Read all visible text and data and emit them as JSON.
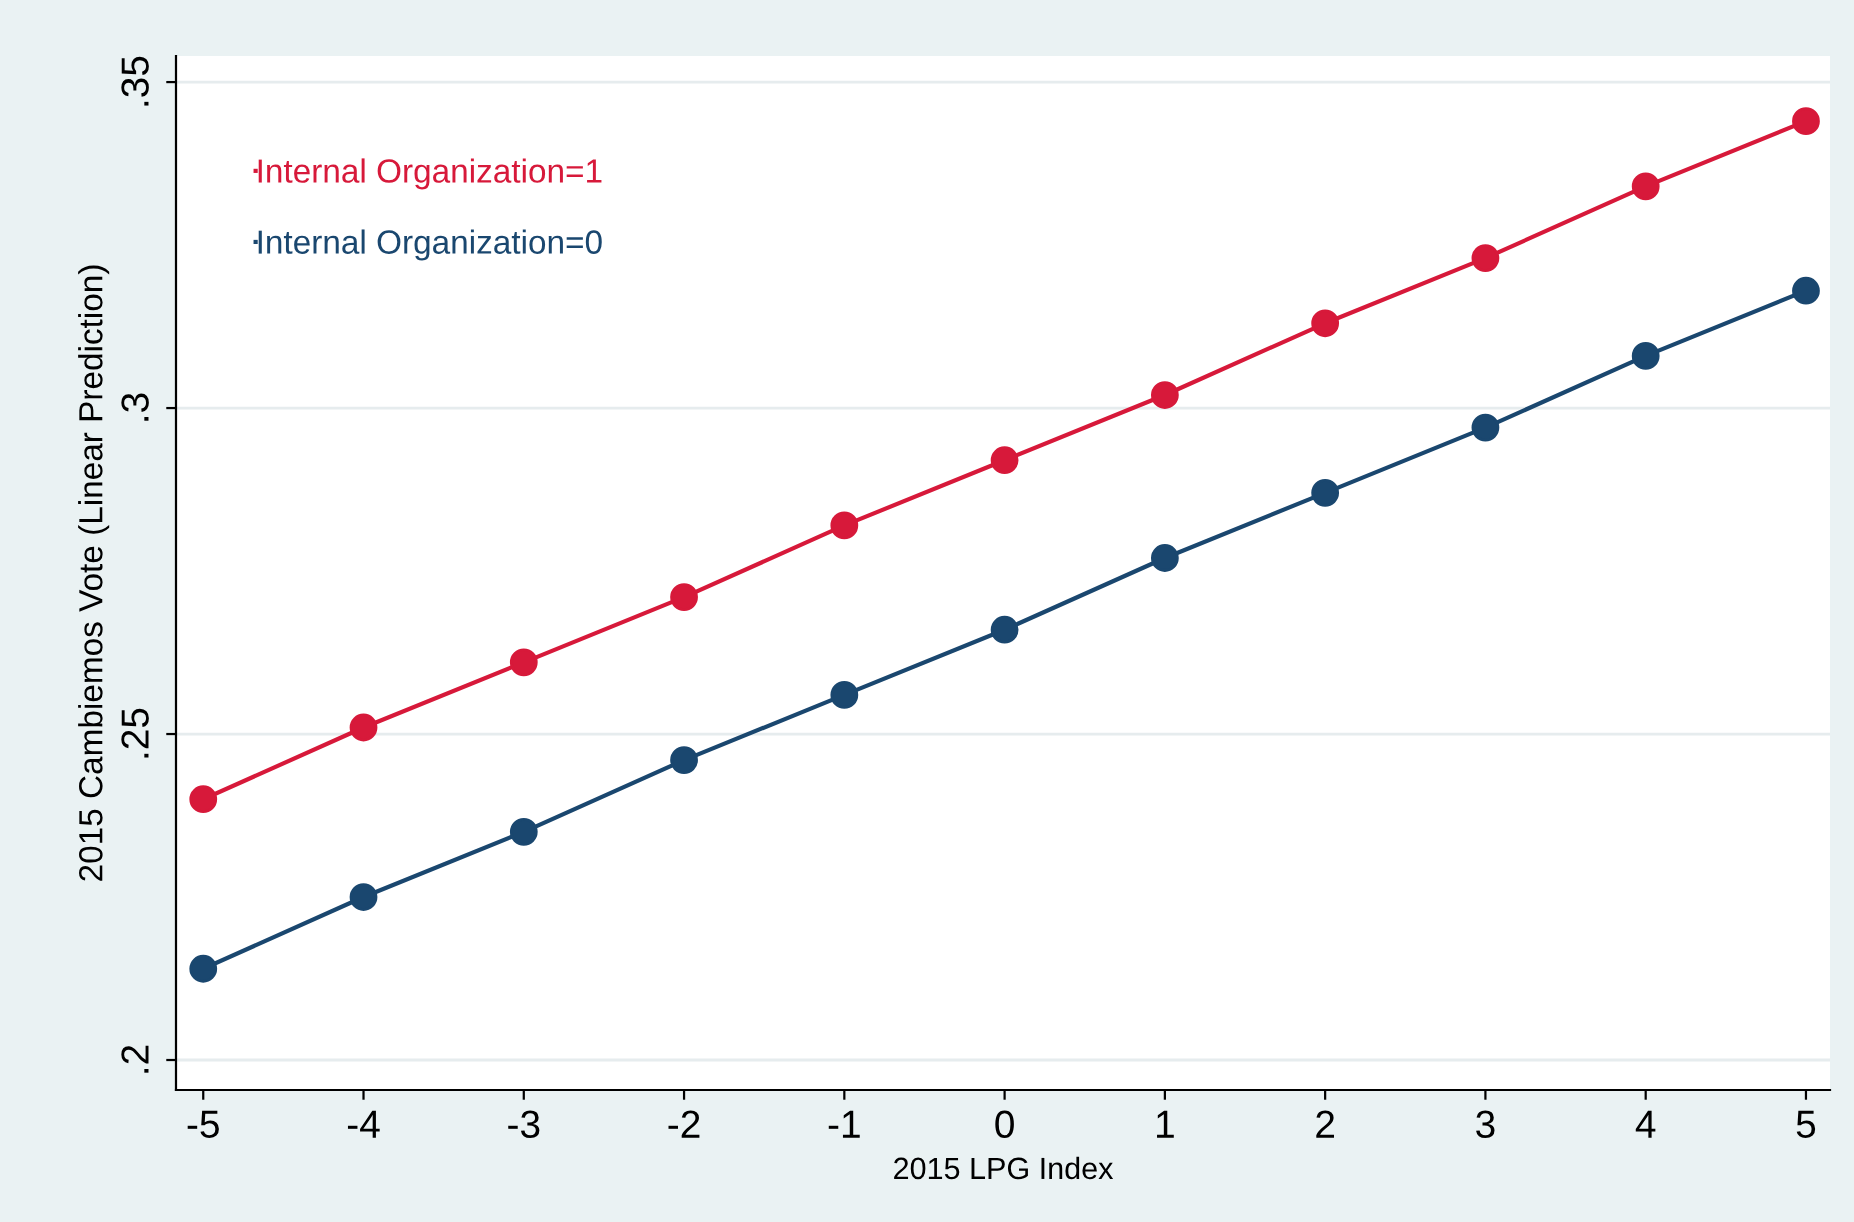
{
  "chart_data": {
    "type": "line",
    "xlabel": "2015 LPG Index",
    "ylabel": "2015 Cambiemos Vote (Linear Prediction)",
    "x": [
      -5,
      -4,
      -3,
      -2,
      -1,
      0,
      1,
      2,
      3,
      4,
      5
    ],
    "series": [
      {
        "name": "Internal Organization=1",
        "color": "#d7193a",
        "values": [
          0.24,
          0.251,
          0.261,
          0.271,
          0.282,
          0.292,
          0.302,
          0.313,
          0.323,
          0.334,
          0.344
        ]
      },
      {
        "name": "Internal Organization=0",
        "color": "#1a476f",
        "values": [
          0.214,
          0.225,
          0.235,
          0.246,
          0.256,
          0.266,
          0.277,
          0.287,
          0.297,
          0.308,
          0.318
        ]
      }
    ],
    "xlim": [
      -5.17,
      5.15
    ],
    "ylim": [
      0.1954,
      0.354
    ],
    "xticks": [
      -5,
      -4,
      -3,
      -2,
      -1,
      0,
      1,
      2,
      3,
      4,
      5
    ],
    "yticks": [
      {
        "value": 0.2,
        "label": ".2"
      },
      {
        "value": 0.25,
        "label": ".25"
      },
      {
        "value": 0.3,
        "label": ".3"
      },
      {
        "value": 0.35,
        "label": ".35"
      }
    ],
    "grid": "y",
    "legend": "top left",
    "marker": "circle",
    "line_style": "solid"
  }
}
